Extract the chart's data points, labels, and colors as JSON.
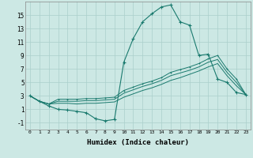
{
  "background_color": "#cce8e4",
  "grid_color": "#aacfcb",
  "line_color": "#1a7a6e",
  "x_values": [
    0,
    1,
    2,
    3,
    4,
    5,
    6,
    7,
    8,
    9,
    10,
    11,
    12,
    13,
    14,
    15,
    16,
    17,
    18,
    19,
    20,
    21,
    22,
    23
  ],
  "series_main": [
    3.0,
    2.2,
    1.5,
    1.0,
    0.9,
    0.7,
    0.5,
    -0.4,
    -0.7,
    -0.5,
    8.0,
    11.5,
    14.0,
    15.2,
    16.2,
    16.5,
    14.0,
    13.5,
    9.0,
    9.2,
    5.5,
    5.0,
    3.5,
    3.2
  ],
  "series_hi": [
    3.0,
    2.2,
    1.8,
    2.5,
    2.5,
    2.5,
    2.6,
    2.6,
    2.7,
    2.8,
    3.8,
    4.3,
    4.8,
    5.2,
    5.7,
    6.5,
    6.9,
    7.3,
    7.8,
    8.5,
    9.0,
    7.0,
    5.5,
    3.2
  ],
  "series_mid": [
    3.0,
    2.2,
    1.8,
    2.2,
    2.2,
    2.2,
    2.3,
    2.3,
    2.4,
    2.5,
    3.4,
    3.9,
    4.4,
    4.8,
    5.3,
    6.0,
    6.4,
    6.8,
    7.3,
    8.0,
    8.4,
    6.5,
    5.0,
    3.2
  ],
  "series_lo": [
    3.0,
    2.2,
    1.8,
    1.9,
    1.9,
    1.8,
    1.9,
    1.9,
    2.0,
    2.1,
    2.8,
    3.3,
    3.8,
    4.2,
    4.7,
    5.3,
    5.7,
    6.2,
    6.7,
    7.3,
    7.8,
    6.0,
    4.5,
    3.2
  ],
  "ylim": [
    -2,
    17
  ],
  "xlim": [
    -0.5,
    23.5
  ],
  "yticks": [
    -1,
    1,
    3,
    5,
    7,
    9,
    11,
    13,
    15
  ],
  "xticks": [
    0,
    1,
    2,
    3,
    4,
    5,
    6,
    7,
    8,
    9,
    10,
    11,
    12,
    13,
    14,
    15,
    16,
    17,
    18,
    19,
    20,
    21,
    22,
    23
  ],
  "xlabel": "Humidex (Indice chaleur)",
  "xlabel_fontsize": 6.5,
  "ytick_fontsize": 5.5,
  "xtick_fontsize": 4.5
}
